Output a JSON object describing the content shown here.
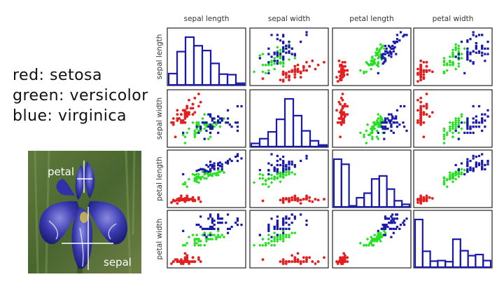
{
  "legend": {
    "setosa": "red: setosa",
    "versicolor": "green: versicolor",
    "virginica": "blue: virginica"
  },
  "photo": {
    "petal_label": "petal",
    "sepal_label": "sepal"
  },
  "colors": {
    "setosa": "#e41f1f",
    "versicolor": "#22e01e",
    "virginica": "#1a1aa8",
    "hist": "#1a1aa8",
    "frame": "#222222",
    "label": "#333333"
  },
  "chart_data": {
    "type": "scatter",
    "variables": [
      "sepal length",
      "sepal width",
      "petal length",
      "petal width"
    ],
    "ranges": [
      [
        4.3,
        7.9
      ],
      [
        2.0,
        4.4
      ],
      [
        1.0,
        6.9
      ],
      [
        0.1,
        2.5
      ]
    ],
    "histograms": [
      [
        2.1,
        6.2,
        8.9,
        7.3,
        6.4,
        4.0,
        2.0,
        1.9,
        0.3
      ],
      [
        0.6,
        1.5,
        2.8,
        5.2,
        9.1,
        5.9,
        3.0,
        1.1,
        0.3
      ],
      [
        9.4,
        8.4,
        0.2,
        1.8,
        2.7,
        5.5,
        6.1,
        3.5,
        1.2,
        0.5
      ],
      [
        8.7,
        2.9,
        1.1,
        1.2,
        1.0,
        5.1,
        3.0,
        2.1,
        2.3,
        1.2
      ]
    ],
    "series": [
      {
        "name": "setosa",
        "color": "#e41f1f",
        "points": [
          [
            5.1,
            3.5,
            1.4,
            0.2
          ],
          [
            4.9,
            3.0,
            1.4,
            0.2
          ],
          [
            4.7,
            3.2,
            1.3,
            0.2
          ],
          [
            4.6,
            3.1,
            1.5,
            0.2
          ],
          [
            5.0,
            3.6,
            1.4,
            0.2
          ],
          [
            5.4,
            3.9,
            1.7,
            0.4
          ],
          [
            4.6,
            3.4,
            1.4,
            0.3
          ],
          [
            5.0,
            3.4,
            1.5,
            0.2
          ],
          [
            4.4,
            2.9,
            1.4,
            0.2
          ],
          [
            4.9,
            3.1,
            1.5,
            0.1
          ],
          [
            5.4,
            3.7,
            1.5,
            0.2
          ],
          [
            4.8,
            3.4,
            1.6,
            0.2
          ],
          [
            4.8,
            3.0,
            1.4,
            0.1
          ],
          [
            4.3,
            3.0,
            1.1,
            0.1
          ],
          [
            5.8,
            4.0,
            1.2,
            0.2
          ],
          [
            5.7,
            4.4,
            1.5,
            0.4
          ],
          [
            5.4,
            3.9,
            1.3,
            0.4
          ],
          [
            5.1,
            3.5,
            1.4,
            0.3
          ],
          [
            5.7,
            3.8,
            1.7,
            0.3
          ],
          [
            5.1,
            3.8,
            1.5,
            0.3
          ],
          [
            5.4,
            3.4,
            1.7,
            0.2
          ],
          [
            5.1,
            3.7,
            1.5,
            0.4
          ],
          [
            4.6,
            3.6,
            1.0,
            0.2
          ],
          [
            5.1,
            3.3,
            1.7,
            0.5
          ],
          [
            4.8,
            3.4,
            1.9,
            0.2
          ],
          [
            5.0,
            3.0,
            1.6,
            0.2
          ],
          [
            5.0,
            3.4,
            1.6,
            0.4
          ],
          [
            5.2,
            3.5,
            1.5,
            0.2
          ],
          [
            5.2,
            3.4,
            1.4,
            0.2
          ],
          [
            4.7,
            3.2,
            1.6,
            0.2
          ],
          [
            4.8,
            3.1,
            1.6,
            0.2
          ],
          [
            5.4,
            3.4,
            1.5,
            0.4
          ],
          [
            5.2,
            4.1,
            1.5,
            0.1
          ],
          [
            5.5,
            4.2,
            1.4,
            0.2
          ],
          [
            4.9,
            3.1,
            1.5,
            0.2
          ],
          [
            5.0,
            3.2,
            1.2,
            0.2
          ],
          [
            5.5,
            3.5,
            1.3,
            0.2
          ],
          [
            4.9,
            3.6,
            1.4,
            0.1
          ],
          [
            4.4,
            3.0,
            1.3,
            0.2
          ],
          [
            5.1,
            3.4,
            1.5,
            0.2
          ],
          [
            5.0,
            3.5,
            1.3,
            0.3
          ],
          [
            4.5,
            2.3,
            1.3,
            0.3
          ],
          [
            4.4,
            3.2,
            1.3,
            0.2
          ],
          [
            5.0,
            3.5,
            1.6,
            0.6
          ],
          [
            5.1,
            3.8,
            1.9,
            0.4
          ],
          [
            4.8,
            3.0,
            1.4,
            0.3
          ],
          [
            5.1,
            3.8,
            1.6,
            0.2
          ],
          [
            4.6,
            3.2,
            1.4,
            0.2
          ],
          [
            5.3,
            3.7,
            1.5,
            0.2
          ],
          [
            5.0,
            3.3,
            1.4,
            0.2
          ]
        ]
      },
      {
        "name": "versicolor",
        "color": "#22e01e",
        "points": [
          [
            7.0,
            3.2,
            4.7,
            1.4
          ],
          [
            6.4,
            3.2,
            4.5,
            1.5
          ],
          [
            6.9,
            3.1,
            4.9,
            1.5
          ],
          [
            5.5,
            2.3,
            4.0,
            1.3
          ],
          [
            6.5,
            2.8,
            4.6,
            1.5
          ],
          [
            5.7,
            2.8,
            4.5,
            1.3
          ],
          [
            6.3,
            3.3,
            4.7,
            1.6
          ],
          [
            4.9,
            2.4,
            3.3,
            1.0
          ],
          [
            6.6,
            2.9,
            4.6,
            1.3
          ],
          [
            5.2,
            2.7,
            3.9,
            1.4
          ],
          [
            5.0,
            2.0,
            3.5,
            1.0
          ],
          [
            5.9,
            3.0,
            4.2,
            1.5
          ],
          [
            6.0,
            2.2,
            4.0,
            1.0
          ],
          [
            6.1,
            2.9,
            4.7,
            1.4
          ],
          [
            5.6,
            2.9,
            3.6,
            1.3
          ],
          [
            6.7,
            3.1,
            4.4,
            1.4
          ],
          [
            5.6,
            3.0,
            4.5,
            1.5
          ],
          [
            5.8,
            2.7,
            4.1,
            1.0
          ],
          [
            6.2,
            2.2,
            4.5,
            1.5
          ],
          [
            5.6,
            2.5,
            3.9,
            1.1
          ],
          [
            5.9,
            3.2,
            4.8,
            1.8
          ],
          [
            6.1,
            2.8,
            4.0,
            1.3
          ],
          [
            6.3,
            2.5,
            4.9,
            1.5
          ],
          [
            6.1,
            2.8,
            4.7,
            1.2
          ],
          [
            6.4,
            2.9,
            4.3,
            1.3
          ],
          [
            6.6,
            3.0,
            4.4,
            1.4
          ],
          [
            6.8,
            2.8,
            4.8,
            1.4
          ],
          [
            6.7,
            3.0,
            5.0,
            1.7
          ],
          [
            6.0,
            2.9,
            4.5,
            1.5
          ],
          [
            5.7,
            2.6,
            3.5,
            1.0
          ],
          [
            5.5,
            2.4,
            3.8,
            1.1
          ],
          [
            5.5,
            2.4,
            3.7,
            1.0
          ],
          [
            5.8,
            2.7,
            3.9,
            1.2
          ],
          [
            6.0,
            2.7,
            5.1,
            1.6
          ],
          [
            5.4,
            3.0,
            4.5,
            1.5
          ],
          [
            6.0,
            3.4,
            4.5,
            1.6
          ],
          [
            6.7,
            3.1,
            4.7,
            1.5
          ],
          [
            6.3,
            2.3,
            4.4,
            1.3
          ],
          [
            5.6,
            3.0,
            4.1,
            1.3
          ],
          [
            5.5,
            2.5,
            4.0,
            1.3
          ],
          [
            5.5,
            2.6,
            4.4,
            1.2
          ],
          [
            6.1,
            3.0,
            4.6,
            1.4
          ],
          [
            5.8,
            2.6,
            4.0,
            1.2
          ],
          [
            5.0,
            2.3,
            3.3,
            1.0
          ],
          [
            5.6,
            2.7,
            4.2,
            1.3
          ],
          [
            5.7,
            3.0,
            4.2,
            1.2
          ],
          [
            5.7,
            2.9,
            4.2,
            1.3
          ],
          [
            6.2,
            2.9,
            4.3,
            1.3
          ],
          [
            5.1,
            2.5,
            3.0,
            1.1
          ],
          [
            5.7,
            2.8,
            4.1,
            1.3
          ]
        ]
      },
      {
        "name": "virginica",
        "color": "#1a1aa8",
        "points": [
          [
            6.3,
            3.3,
            6.0,
            2.5
          ],
          [
            5.8,
            2.7,
            5.1,
            1.9
          ],
          [
            7.1,
            3.0,
            5.9,
            2.1
          ],
          [
            6.3,
            2.9,
            5.6,
            1.8
          ],
          [
            6.5,
            3.0,
            5.8,
            2.2
          ],
          [
            7.6,
            3.0,
            6.6,
            2.1
          ],
          [
            4.9,
            2.5,
            4.5,
            1.7
          ],
          [
            7.3,
            2.9,
            6.3,
            1.8
          ],
          [
            6.7,
            2.5,
            5.8,
            1.8
          ],
          [
            7.2,
            3.6,
            6.1,
            2.5
          ],
          [
            6.5,
            3.2,
            5.1,
            2.0
          ],
          [
            6.4,
            2.7,
            5.3,
            1.9
          ],
          [
            6.8,
            3.0,
            5.5,
            2.1
          ],
          [
            5.7,
            2.5,
            5.0,
            2.0
          ],
          [
            5.8,
            2.8,
            5.1,
            2.4
          ],
          [
            6.4,
            3.2,
            5.3,
            2.3
          ],
          [
            6.5,
            3.0,
            5.5,
            1.8
          ],
          [
            7.7,
            3.8,
            6.7,
            2.2
          ],
          [
            7.7,
            2.6,
            6.9,
            2.3
          ],
          [
            6.0,
            2.2,
            5.0,
            1.5
          ],
          [
            6.9,
            3.2,
            5.7,
            2.3
          ],
          [
            5.6,
            2.8,
            4.9,
            2.0
          ],
          [
            7.7,
            2.8,
            6.7,
            2.0
          ],
          [
            6.3,
            2.7,
            4.9,
            1.8
          ],
          [
            6.7,
            3.3,
            5.7,
            2.1
          ],
          [
            7.2,
            3.2,
            6.0,
            1.8
          ],
          [
            6.2,
            2.8,
            4.8,
            1.8
          ],
          [
            6.1,
            3.0,
            4.9,
            1.8
          ],
          [
            6.4,
            2.8,
            5.6,
            2.1
          ],
          [
            7.2,
            3.0,
            5.8,
            1.6
          ],
          [
            7.4,
            2.8,
            6.1,
            1.9
          ],
          [
            7.9,
            3.8,
            6.4,
            2.0
          ],
          [
            6.4,
            2.8,
            5.6,
            2.2
          ],
          [
            6.3,
            2.8,
            5.1,
            1.5
          ],
          [
            6.1,
            2.6,
            5.6,
            1.4
          ],
          [
            7.7,
            3.0,
            6.1,
            2.3
          ],
          [
            6.3,
            3.4,
            5.6,
            2.4
          ],
          [
            6.4,
            3.1,
            5.5,
            1.8
          ],
          [
            6.0,
            3.0,
            4.8,
            1.8
          ],
          [
            6.9,
            3.1,
            5.4,
            2.1
          ],
          [
            6.7,
            3.1,
            5.6,
            2.4
          ],
          [
            6.9,
            3.1,
            5.1,
            2.3
          ],
          [
            5.8,
            2.7,
            5.1,
            1.9
          ],
          [
            6.8,
            3.2,
            5.9,
            2.3
          ],
          [
            6.7,
            3.3,
            5.7,
            2.5
          ],
          [
            6.7,
            3.0,
            5.2,
            2.3
          ],
          [
            6.3,
            2.5,
            5.0,
            1.9
          ],
          [
            6.5,
            3.0,
            5.2,
            2.0
          ],
          [
            6.2,
            3.4,
            5.4,
            2.3
          ],
          [
            5.9,
            3.0,
            5.1,
            1.8
          ]
        ]
      }
    ]
  }
}
